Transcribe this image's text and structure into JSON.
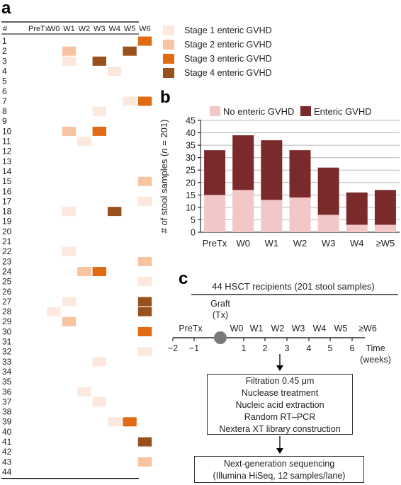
{
  "panel_labels": {
    "a": "a",
    "b": "b",
    "c": "c"
  },
  "heatmap": {
    "header": [
      "#",
      "PreTx",
      "W0",
      "W1",
      "W2",
      "W3",
      "W4",
      "W5",
      "W6"
    ],
    "colors": {
      "0": "#ffffff",
      "1": "#fce8dc",
      "2": "#f8c3a0",
      "3": "#e06b12",
      "4": "#98501c"
    },
    "stage_names": [
      "Stage 1 enteric GVHD",
      "Stage 2 enteric GVHD",
      "Stage 3 enteric GVHD",
      "Stage 4 enteric GVHD"
    ],
    "rows": [
      {
        "id": "1",
        "stages": [
          0,
          0,
          0,
          0,
          0,
          0,
          0,
          3
        ]
      },
      {
        "id": "2",
        "stages": [
          0,
          0,
          2,
          0,
          0,
          0,
          4,
          0
        ]
      },
      {
        "id": "3",
        "stages": [
          0,
          0,
          1,
          0,
          4,
          0,
          0,
          0
        ]
      },
      {
        "id": "4",
        "stages": [
          0,
          0,
          0,
          0,
          0,
          1,
          0,
          0
        ]
      },
      {
        "id": "5",
        "stages": [
          0,
          0,
          0,
          0,
          0,
          0,
          0,
          0
        ]
      },
      {
        "id": "6",
        "stages": [
          0,
          0,
          0,
          0,
          0,
          0,
          0,
          0
        ]
      },
      {
        "id": "7",
        "stages": [
          0,
          0,
          0,
          0,
          0,
          0,
          1,
          3
        ]
      },
      {
        "id": "8",
        "stages": [
          0,
          0,
          0,
          0,
          1,
          0,
          0,
          0
        ]
      },
      {
        "id": "9",
        "stages": [
          0,
          0,
          0,
          0,
          0,
          0,
          0,
          0
        ]
      },
      {
        "id": "10",
        "stages": [
          0,
          0,
          2,
          0,
          3,
          0,
          0,
          0
        ]
      },
      {
        "id": "11",
        "stages": [
          0,
          0,
          0,
          1,
          0,
          0,
          0,
          0
        ]
      },
      {
        "id": "12",
        "stages": [
          0,
          0,
          0,
          0,
          0,
          0,
          0,
          0
        ]
      },
      {
        "id": "13",
        "stages": [
          0,
          0,
          0,
          0,
          0,
          0,
          0,
          0
        ]
      },
      {
        "id": "14",
        "stages": [
          0,
          0,
          0,
          0,
          0,
          0,
          0,
          0
        ]
      },
      {
        "id": "15",
        "stages": [
          0,
          0,
          0,
          0,
          0,
          0,
          0,
          2
        ]
      },
      {
        "id": "16",
        "stages": [
          0,
          0,
          0,
          0,
          0,
          0,
          0,
          0
        ]
      },
      {
        "id": "17",
        "stages": [
          0,
          0,
          0,
          0,
          0,
          0,
          0,
          1
        ]
      },
      {
        "id": "18",
        "stages": [
          0,
          0,
          1,
          0,
          0,
          4,
          0,
          0
        ]
      },
      {
        "id": "19",
        "stages": [
          0,
          0,
          0,
          0,
          0,
          0,
          0,
          0
        ]
      },
      {
        "id": "20",
        "stages": [
          0,
          0,
          0,
          0,
          0,
          0,
          0,
          0
        ]
      },
      {
        "id": "21",
        "stages": [
          0,
          0,
          0,
          0,
          0,
          0,
          0,
          0
        ]
      },
      {
        "id": "22",
        "stages": [
          0,
          0,
          1,
          0,
          0,
          0,
          0,
          0
        ]
      },
      {
        "id": "23",
        "stages": [
          0,
          0,
          0,
          0,
          0,
          0,
          0,
          2
        ]
      },
      {
        "id": "24",
        "stages": [
          0,
          0,
          0,
          2,
          3,
          0,
          0,
          0
        ]
      },
      {
        "id": "25",
        "stages": [
          0,
          0,
          0,
          0,
          0,
          0,
          0,
          1
        ]
      },
      {
        "id": "26",
        "stages": [
          0,
          0,
          0,
          0,
          0,
          0,
          0,
          0
        ]
      },
      {
        "id": "27",
        "stages": [
          0,
          0,
          1,
          0,
          0,
          0,
          0,
          4
        ]
      },
      {
        "id": "28",
        "stages": [
          0,
          1,
          0,
          0,
          0,
          0,
          0,
          4
        ]
      },
      {
        "id": "29",
        "stages": [
          0,
          0,
          2,
          0,
          0,
          0,
          0,
          0
        ]
      },
      {
        "id": "30",
        "stages": [
          0,
          0,
          0,
          0,
          0,
          0,
          0,
          3
        ]
      },
      {
        "id": "31",
        "stages": [
          0,
          0,
          0,
          0,
          0,
          0,
          0,
          0
        ]
      },
      {
        "id": "32",
        "stages": [
          0,
          0,
          0,
          0,
          0,
          0,
          0,
          1
        ]
      },
      {
        "id": "33",
        "stages": [
          0,
          0,
          0,
          0,
          1,
          0,
          0,
          0
        ]
      },
      {
        "id": "34",
        "stages": [
          0,
          0,
          0,
          0,
          0,
          0,
          0,
          0
        ]
      },
      {
        "id": "35",
        "stages": [
          0,
          0,
          0,
          0,
          0,
          0,
          0,
          0
        ]
      },
      {
        "id": "36",
        "stages": [
          0,
          0,
          0,
          1,
          0,
          0,
          0,
          0
        ]
      },
      {
        "id": "37",
        "stages": [
          0,
          0,
          0,
          0,
          1,
          0,
          0,
          0
        ]
      },
      {
        "id": "38",
        "stages": [
          0,
          0,
          0,
          0,
          0,
          0,
          0,
          0
        ]
      },
      {
        "id": "39",
        "stages": [
          0,
          0,
          0,
          0,
          0,
          1,
          3,
          0
        ]
      },
      {
        "id": "40",
        "stages": [
          0,
          0,
          0,
          0,
          0,
          0,
          0,
          0
        ]
      },
      {
        "id": "41",
        "stages": [
          0,
          0,
          0,
          0,
          0,
          0,
          0,
          4
        ]
      },
      {
        "id": "42",
        "stages": [
          0,
          0,
          0,
          0,
          0,
          0,
          0,
          0
        ]
      },
      {
        "id": "43",
        "stages": [
          0,
          0,
          0,
          0,
          0,
          0,
          0,
          2
        ]
      },
      {
        "id": "44",
        "stages": [
          0,
          0,
          0,
          0,
          0,
          0,
          0,
          0
        ]
      }
    ]
  },
  "chart_data": [
    {
      "type": "heatmap",
      "columns": [
        "PreTx",
        "W0",
        "W1",
        "W2",
        "W3",
        "W4",
        "W5",
        "W6"
      ],
      "legend": [
        "Stage 1 enteric GVHD",
        "Stage 2 enteric GVHD",
        "Stage 3 enteric GVHD",
        "Stage 4 enteric GVHD"
      ]
    },
    {
      "type": "bar",
      "stacked": true,
      "categories": [
        "PreTx",
        "W0",
        "W1",
        "W2",
        "W3",
        "W4",
        "≥W5"
      ],
      "series": [
        {
          "name": "No enteric GVHD",
          "color": "#f1c7c8",
          "values": [
            15,
            17,
            13,
            14,
            7,
            3,
            3
          ]
        },
        {
          "name": "Enteric GVHD",
          "color": "#7b2a2b",
          "values": [
            18,
            22,
            24,
            19,
            19,
            13,
            14
          ]
        }
      ],
      "ylabel_parts": [
        "# of stool samples (",
        "n",
        " = 201)"
      ],
      "ylim": [
        0,
        45
      ],
      "yticks": [
        0,
        5,
        10,
        15,
        20,
        25,
        30,
        35,
        40,
        45
      ],
      "grid": true,
      "legend_position": "top"
    }
  ],
  "timeline": {
    "header": "44 HSCT recipients (201 stool samples)",
    "graft_label_1": "Graft",
    "graft_label_2": "(Tx)",
    "period_labels": [
      "PreTx",
      "W0",
      "W1",
      "W2",
      "W3",
      "W4",
      "W5",
      "≥W6"
    ],
    "ticks": [
      "−2",
      "−1",
      "1",
      "2",
      "3",
      "4",
      "5",
      "6"
    ],
    "time_label": "Time",
    "time_unit": "(weeks)"
  },
  "protocol": {
    "steps": [
      "Filtration 0.45 μm",
      "Nuclease treatment",
      "Nucleic acid extraction",
      "Random RT–PCR",
      "Nextera XT library construction"
    ],
    "final_line_1": "Next-generation sequencing",
    "final_line_2": "(Illumina HiSeq, 12 samples/lane)"
  }
}
